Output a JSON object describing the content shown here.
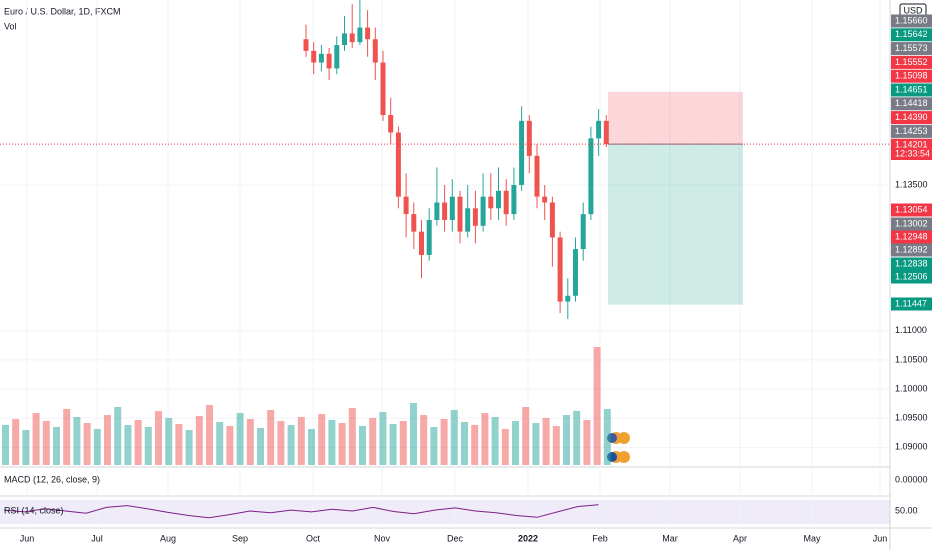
{
  "header": {
    "symbol": "Euro / U.S. Dollar, 1D, FXCM",
    "volume_label": "Vol"
  },
  "currency": "USD",
  "chart_data": {
    "type": "candlestick",
    "ylim": [
      1.08697,
      1.16673
    ],
    "yticks": [
      {
        "value": 1.135,
        "label": "1.13500"
      },
      {
        "value": 1.11,
        "label": "1.11000"
      },
      {
        "value": 1.105,
        "label": "1.10500"
      },
      {
        "value": 1.1,
        "label": "1.10000"
      },
      {
        "value": 1.095,
        "label": "1.09500"
      },
      {
        "value": 1.09,
        "label": "1.09000"
      }
    ],
    "candles": [
      [
        1.16,
        1.1625,
        1.157,
        1.158
      ],
      [
        1.158,
        1.1595,
        1.154,
        1.156
      ],
      [
        1.156,
        1.159,
        1.1545,
        1.1575
      ],
      [
        1.1575,
        1.1585,
        1.153,
        1.155
      ],
      [
        1.155,
        1.1605,
        1.154,
        1.159
      ],
      [
        1.159,
        1.164,
        1.158,
        1.161
      ],
      [
        1.161,
        1.166,
        1.1585,
        1.1595
      ],
      [
        1.1595,
        1.1668,
        1.159,
        1.162
      ],
      [
        1.162,
        1.165,
        1.157,
        1.16
      ],
      [
        1.16,
        1.162,
        1.153,
        1.156
      ],
      [
        1.156,
        1.158,
        1.146,
        1.147
      ],
      [
        1.147,
        1.15,
        1.142,
        1.144
      ],
      [
        1.144,
        1.145,
        1.131,
        1.133
      ],
      [
        1.133,
        1.137,
        1.126,
        1.13
      ],
      [
        1.13,
        1.132,
        1.124,
        1.127
      ],
      [
        1.127,
        1.129,
        1.119,
        1.123
      ],
      [
        1.123,
        1.131,
        1.122,
        1.129
      ],
      [
        1.129,
        1.138,
        1.128,
        1.132
      ],
      [
        1.132,
        1.135,
        1.127,
        1.129
      ],
      [
        1.129,
        1.136,
        1.127,
        1.133
      ],
      [
        1.133,
        1.134,
        1.125,
        1.127
      ],
      [
        1.127,
        1.135,
        1.126,
        1.131
      ],
      [
        1.131,
        1.134,
        1.125,
        1.128
      ],
      [
        1.128,
        1.137,
        1.127,
        1.133
      ],
      [
        1.133,
        1.137,
        1.129,
        1.131
      ],
      [
        1.131,
        1.138,
        1.129,
        1.134
      ],
      [
        1.134,
        1.136,
        1.128,
        1.13
      ],
      [
        1.13,
        1.138,
        1.129,
        1.135
      ],
      [
        1.135,
        1.1485,
        1.134,
        1.146
      ],
      [
        1.146,
        1.147,
        1.137,
        1.14
      ],
      [
        1.14,
        1.142,
        1.131,
        1.133
      ],
      [
        1.133,
        1.135,
        1.129,
        1.132
      ],
      [
        1.132,
        1.133,
        1.121,
        1.126
      ],
      [
        1.126,
        1.127,
        1.113,
        1.115
      ],
      [
        1.115,
        1.119,
        1.112,
        1.116
      ],
      [
        1.116,
        1.126,
        1.115,
        1.124
      ],
      [
        1.124,
        1.132,
        1.122,
        1.13
      ],
      [
        1.13,
        1.145,
        1.129,
        1.143
      ],
      [
        1.143,
        1.148,
        1.14,
        1.146
      ],
      [
        1.146,
        1.147,
        1.1415,
        1.142
      ]
    ],
    "volume": [
      40,
      46,
      35,
      52,
      44,
      38,
      56,
      48,
      42,
      36,
      50,
      58,
      40,
      45,
      38,
      54,
      47,
      41,
      35,
      49,
      60,
      43,
      39,
      52,
      46,
      37,
      55,
      44,
      40,
      48,
      36,
      51,
      45,
      42,
      57,
      39,
      47,
      53,
      41,
      44,
      62,
      50,
      38,
      46,
      55,
      43,
      40,
      52,
      48,
      36,
      44,
      58,
      42,
      47,
      39,
      50,
      54,
      45,
      118,
      56
    ],
    "volume_up": [
      1,
      0,
      1,
      0,
      0,
      1,
      0,
      1,
      0,
      1,
      0,
      1,
      1,
      0,
      1,
      0,
      1,
      0,
      1,
      0,
      0,
      1,
      0,
      1,
      0,
      1,
      0,
      0,
      1,
      0,
      1,
      0,
      1,
      0,
      0,
      1,
      0,
      1,
      1,
      0,
      1,
      0,
      1,
      0,
      1,
      1,
      0,
      0,
      1,
      0,
      1,
      0,
      1,
      0,
      0,
      1,
      1,
      0,
      0,
      1
    ],
    "rsi": [
      52,
      48,
      55,
      50,
      45,
      58,
      62,
      55,
      47,
      40,
      35,
      42,
      50,
      46,
      52,
      48,
      54,
      50,
      58,
      49,
      44,
      52,
      57,
      50,
      46,
      40,
      36,
      48,
      60,
      64
    ],
    "position": {
      "stop": 1.15098,
      "entry": 1.14201,
      "target": 1.11447
    },
    "price_labels": [
      {
        "text": "1.15660",
        "bg": "#787b86"
      },
      {
        "text": "1.15642",
        "bg": "#089981"
      },
      {
        "text": "1.15573",
        "bg": "#787b86"
      },
      {
        "text": "1.15552",
        "bg": "#f23645"
      },
      {
        "text": "1.15098",
        "bg": "#f23645"
      },
      {
        "text": "1.14651",
        "bg": "#089981"
      },
      {
        "text": "1.14418",
        "bg": "#787b86"
      },
      {
        "text": "1.14390",
        "bg": "#f23645"
      },
      {
        "text": "1.14253",
        "bg": "#787b86"
      },
      {
        "text": "1.14201",
        "bg": "#f23645"
      }
    ],
    "countdown": "12:33:54",
    "lower_labels": [
      {
        "text": "1.13054",
        "bg": "#f23645"
      },
      {
        "text": "1.13002",
        "bg": "#787b86"
      },
      {
        "text": "1.12948",
        "bg": "#f23645"
      },
      {
        "text": "1.12892",
        "bg": "#787b86"
      },
      {
        "text": "1.12838",
        "bg": "#089981"
      },
      {
        "text": "1.12506",
        "bg": "#089981"
      },
      {
        "text": "1.11447",
        "bg": "#089981"
      }
    ],
    "macd": {
      "label": "MACD (12, 26, close, 9)",
      "zero": "0.00000"
    },
    "rsi_pane": {
      "label": "RSI (14, close)",
      "mid": "50.00"
    },
    "time_labels": [
      "Jun",
      "Jul",
      "Aug",
      "Sep",
      "Oct",
      "Nov",
      "Dec",
      "2022",
      "Feb",
      "Mar",
      "Apr",
      "May",
      "Jun"
    ]
  }
}
